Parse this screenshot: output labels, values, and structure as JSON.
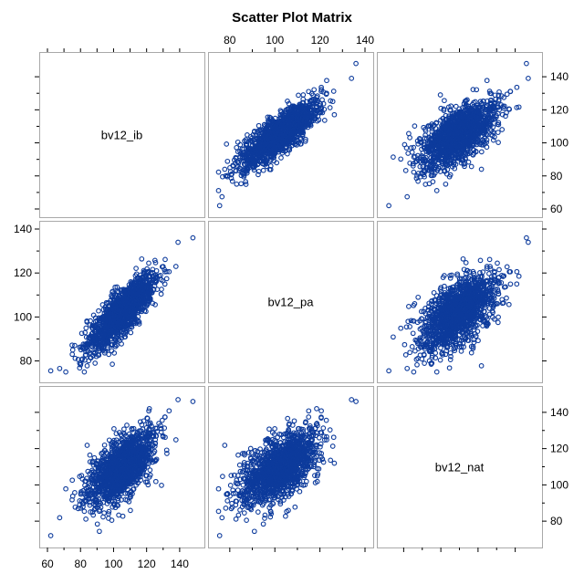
{
  "chart_data": {
    "type": "scatter",
    "title": "Scatter Plot Matrix",
    "variables": [
      "bv12_ib",
      "bv12_pa",
      "bv12_nat"
    ],
    "ranges": {
      "bv12_ib": [
        60,
        150
      ],
      "bv12_pa": [
        74,
        140
      ],
      "bv12_nat": [
        70,
        150
      ]
    },
    "ticks": {
      "bv12_ib": [
        "60",
        "80",
        "100",
        "120",
        "140"
      ],
      "bv12_pa": [
        "80",
        "100",
        "120",
        "140"
      ],
      "bv12_nat": [
        "80",
        "100",
        "120",
        "140"
      ]
    },
    "axis_label_placement": {
      "top": "bv12_pa",
      "right_row0": "bv12_ib",
      "left_row1": "bv12_pa",
      "right_row2": "bv12_nat",
      "bottom": "bv12_ib"
    },
    "correlations": {
      "bv12_ib__bv12_pa": 0.82,
      "bv12_ib__bv12_nat": 0.62,
      "bv12_pa__bv12_nat": 0.55
    },
    "n_points": 1500,
    "marker": "open-circle",
    "color": "#0d3b9c",
    "grid": false,
    "legend": "none"
  }
}
